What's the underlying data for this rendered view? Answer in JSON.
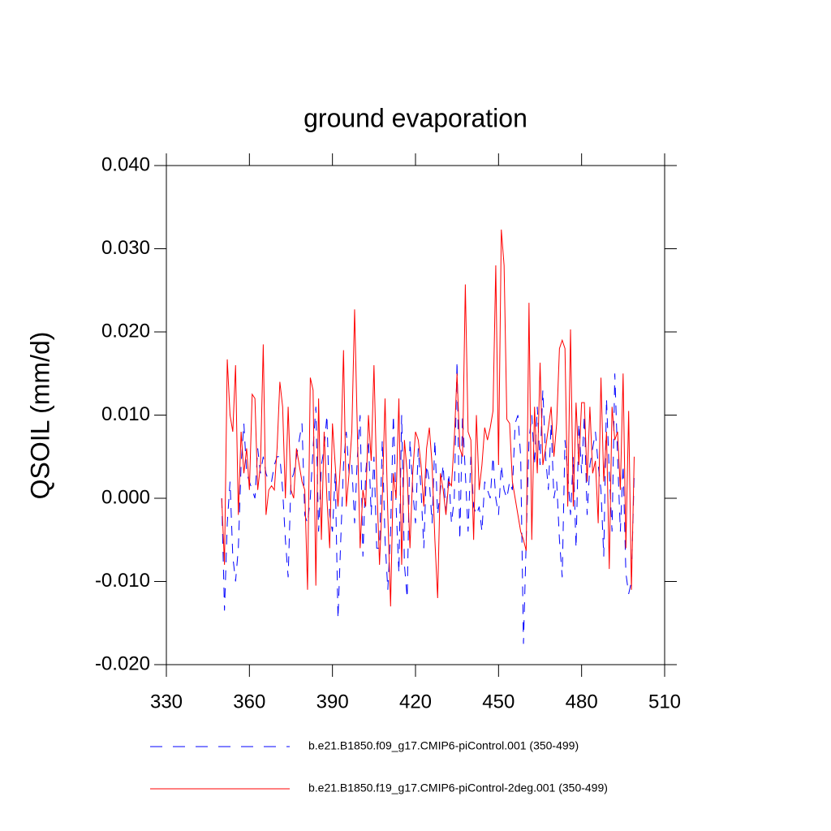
{
  "chart_data": {
    "type": "line",
    "title": "ground evaporation",
    "y_label": "QSOIL  (mm/d)",
    "xlim": [
      330,
      510
    ],
    "xticks": [
      330,
      360,
      390,
      420,
      450,
      480,
      510
    ],
    "ylim": [
      -0.02,
      0.04
    ],
    "yticks": [
      {
        "value": -0.02,
        "label": "-0.020"
      },
      {
        "value": -0.01,
        "label": "-0.010"
      },
      {
        "value": 0,
        "label": "0.000"
      },
      {
        "value": 0.01,
        "label": "0.010"
      },
      {
        "value": 0.02,
        "label": "0.020"
      },
      {
        "value": 0.03,
        "label": "0.030"
      },
      {
        "value": 0.04,
        "label": "0.040"
      }
    ],
    "x": [
      350,
      351,
      352,
      353,
      354,
      355,
      356,
      357,
      358,
      359,
      360,
      361,
      362,
      363,
      364,
      365,
      366,
      367,
      368,
      369,
      370,
      371,
      372,
      373,
      374,
      375,
      376,
      377,
      378,
      379,
      380,
      381,
      382,
      383,
      384,
      385,
      386,
      387,
      388,
      389,
      390,
      391,
      392,
      393,
      394,
      395,
      396,
      397,
      398,
      399,
      400,
      401,
      402,
      403,
      404,
      405,
      406,
      407,
      408,
      409,
      410,
      411,
      412,
      413,
      414,
      415,
      416,
      417,
      418,
      419,
      420,
      421,
      422,
      423,
      424,
      425,
      426,
      427,
      428,
      429,
      430,
      431,
      432,
      433,
      434,
      435,
      436,
      437,
      438,
      439,
      440,
      441,
      442,
      443,
      444,
      445,
      446,
      447,
      448,
      449,
      450,
      451,
      452,
      453,
      454,
      455,
      456,
      457,
      458,
      459,
      460,
      461,
      462,
      463,
      464,
      465,
      466,
      467,
      468,
      469,
      470,
      471,
      472,
      473,
      474,
      475,
      476,
      477,
      478,
      479,
      480,
      481,
      482,
      483,
      484,
      485,
      486,
      487,
      488,
      489,
      490,
      491,
      492,
      493,
      494,
      495,
      496,
      497,
      498,
      499
    ],
    "series": [
      {
        "name": "b.e21.B1850.f09_g17.CMIP6-piControl.001 (350-499)",
        "color": "#0000ff",
        "dashed": true,
        "values": [
          0.0,
          -0.0135,
          -0.003,
          0.002,
          -0.007,
          -0.01,
          -0.006,
          0.004,
          0.009,
          0.003,
          0.002,
          0.001,
          0.0,
          0.006,
          0.003,
          0.005,
          0.003,
          0.002,
          0.002,
          0.004,
          0.005,
          0.005,
          0.001,
          -0.005,
          -0.0095,
          0.002,
          0.003,
          0.005,
          0.007,
          0.009,
          -0.002,
          -0.003,
          0.0,
          0.006,
          0.011,
          -0.004,
          0.004,
          0.006,
          0.01,
          -0.002,
          -0.004,
          0.003,
          -0.0145,
          -0.005,
          0.004,
          0.008,
          0.003,
          0.004,
          -0.003,
          0.005,
          0.01,
          -0.007,
          0.003,
          0.007,
          -0.002,
          0.005,
          -0.006,
          -0.006,
          0.007,
          -0.005,
          -0.011,
          -0.004,
          0.01,
          -0.001,
          -0.009,
          0.01,
          -0.008,
          -0.012,
          0.007,
          0.001,
          -0.003,
          0.006,
          0.001,
          -0.006,
          0.004,
          0.002,
          -0.003,
          0.007,
          -0.002,
          0.001,
          0.004,
          -0.002,
          0.003,
          -0.003,
          0.0,
          0.0165,
          -0.005,
          0.01,
          0.003,
          -0.004,
          0.005,
          -0.001,
          -0.002,
          -0.001,
          -0.004,
          0.002,
          0.001,
          0.0,
          0.005,
          0.0,
          -0.002,
          0.004,
          0.001,
          0.0,
          0.002,
          0.001,
          0.009,
          0.01,
          0.005,
          -0.0175,
          -0.005,
          0.007,
          0.01,
          0.004,
          0.011,
          0.004,
          0.013,
          0.005,
          0.001,
          0.009,
          0.0,
          0.002,
          -0.005,
          -0.0095,
          0.007,
          0.003,
          -0.002,
          0.005,
          -0.006,
          0.009,
          0.003,
          0.01,
          -0.002,
          0.004,
          0.006,
          0.008,
          0.004,
          0.001,
          -0.007,
          0.012,
          0.003,
          -0.004,
          0.015,
          0.005,
          -0.004,
          0.004,
          -0.009,
          -0.0115,
          -0.01,
          0.003
        ]
      },
      {
        "name": "b.e21.B1850.f19_g17.CMIP6-piControl-2deg.001 (350-499)",
        "color": "#ff0000",
        "dashed": false,
        "values": [
          0.0,
          -0.008,
          0.0167,
          0.01,
          0.008,
          0.016,
          -0.002,
          0.008,
          0.003,
          0.006,
          0.001,
          0.0125,
          0.012,
          0.001,
          0.004,
          0.0185,
          -0.002,
          0.001,
          0.0015,
          0.001,
          0.006,
          0.014,
          0.011,
          0.0,
          0.011,
          0.001,
          0.0,
          0.006,
          0.004,
          0.002,
          0.001,
          -0.011,
          0.0145,
          0.013,
          -0.0105,
          0.012,
          -0.005,
          0.008,
          0.0,
          -0.006,
          0.009,
          0.004,
          -0.001,
          0.005,
          0.0178,
          -0.001,
          0.003,
          0.008,
          0.0227,
          0.008,
          -0.006,
          0.001,
          -0.001,
          0.01,
          0.0045,
          0.016,
          0.002,
          -0.008,
          0.0,
          0.012,
          -0.002,
          -0.013,
          0.003,
          0.0,
          0.012,
          -0.008,
          0.007,
          0.003,
          -0.006,
          0.003,
          0.008,
          0.007,
          0.004,
          -0.001,
          0.006,
          0.0085,
          0.004,
          -0.005,
          -0.012,
          0.003,
          0.001,
          -0.002,
          0.002,
          0.0015,
          0.007,
          0.015,
          0.006,
          0.005,
          0.0257,
          0.008,
          0.007,
          -0.005,
          0.01,
          0.001,
          0.004,
          0.0085,
          0.007,
          0.0085,
          0.0105,
          0.028,
          0.004,
          0.0323,
          0.028,
          0.0095,
          0.009,
          0.002,
          0.0,
          -0.002,
          -0.004,
          -0.005,
          -0.0063,
          0.0235,
          -0.005,
          0.011,
          0.003,
          0.0163,
          0.004,
          0.006,
          0.0085,
          0.011,
          0.005,
          0.009,
          0.018,
          0.019,
          0.018,
          -0.001,
          0.0203,
          -0.001,
          0.0115,
          0.004,
          0.0115,
          0.0115,
          0.002,
          0.011,
          0.003,
          0.0045,
          -0.003,
          0.0145,
          0.002,
          0.008,
          -0.0085,
          0.011,
          0.007,
          0.008,
          0.001,
          0.015,
          -0.006,
          0.0105,
          -0.011,
          0.005
        ]
      }
    ]
  }
}
